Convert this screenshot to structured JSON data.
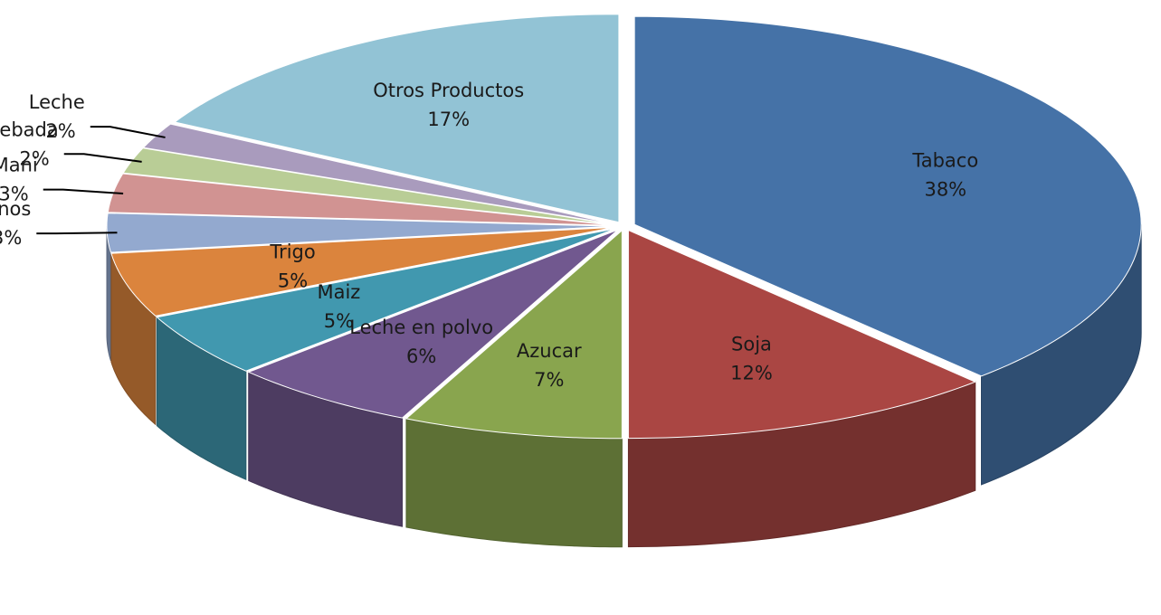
{
  "chart_data": {
    "type": "pie",
    "categories": [
      "Tabaco",
      "Soja",
      "Azucar",
      "Leche en polvo",
      "Maiz",
      "Trigo",
      "Cueros vacunos",
      "Mani",
      "Cebada",
      "Leche",
      "Otros Productos"
    ],
    "values": [
      38,
      12,
      7,
      6,
      5,
      5,
      3,
      3,
      2,
      2,
      17
    ],
    "value_labels": [
      "38%",
      "12%",
      "7%",
      "6%",
      "5%",
      "5%",
      "3%",
      "3%",
      "2%",
      "2%",
      "17%"
    ],
    "colors": [
      "#4572a7",
      "#aa4643",
      "#89a54e",
      "#71588f",
      "#4198af",
      "#db843d",
      "#93a9cf",
      "#d19392",
      "#b9cd96",
      "#a99bbd",
      "#92c3d5"
    ]
  }
}
